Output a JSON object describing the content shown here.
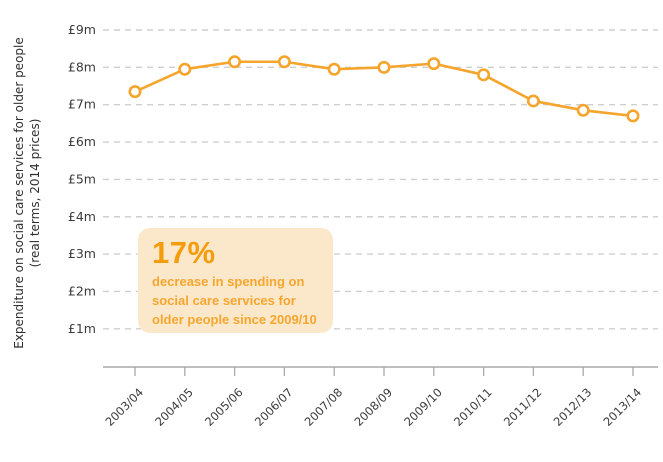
{
  "chart_data": {
    "type": "line",
    "title": "",
    "categories": [
      "2003/04",
      "2004/05",
      "2005/06",
      "2006/07",
      "2007/08",
      "2008/09",
      "2009/10",
      "2010/11",
      "2011/12",
      "2012/13",
      "2013/14"
    ],
    "values": [
      7.35,
      7.95,
      8.15,
      8.15,
      7.95,
      8.0,
      8.1,
      7.8,
      7.1,
      6.85,
      6.7
    ],
    "ylabel_line1": "Expenditure on social care services for older people",
    "ylabel_line2": "(real terms, 2014 prices)",
    "xlabel": "",
    "yticks": [
      9,
      8,
      7,
      6,
      5,
      4,
      3,
      2,
      1
    ],
    "ytick_prefix": "£",
    "ytick_suffix": "m",
    "ylim": [
      0,
      9.6
    ],
    "grid": "horizontal-dashed",
    "legend": "none",
    "marker": "open-circle"
  },
  "annotation": {
    "headline": "17%",
    "body": "decrease in spending on\nsocial care services for\nolder people since 2009/10"
  },
  "colors": {
    "line": "#F5A42C",
    "marker_fill": "#FFFFFF",
    "grid": "#CFCFCF",
    "axis": "#A9A9A9",
    "tick_text": "#3B3B3B",
    "callout_bg": "#FBE8CB",
    "callout_headline": "#F59C0B",
    "callout_text": "#F5A62E"
  }
}
